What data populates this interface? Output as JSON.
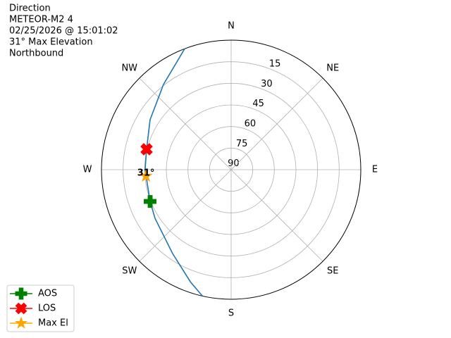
{
  "chart_data": {
    "type": "polar",
    "title_lines": [
      "Direction",
      "METEOR-M2 4",
      "02/25/2026 @ 15:01:02",
      "31° Max Elevation",
      "Northbound"
    ],
    "theta_ticks": [
      {
        "value": 0,
        "label": "N"
      },
      {
        "value": 45,
        "label": "NE"
      },
      {
        "value": 90,
        "label": "E"
      },
      {
        "value": 135,
        "label": "SE"
      },
      {
        "value": 180,
        "label": "S"
      },
      {
        "value": 225,
        "label": "SW"
      },
      {
        "value": 270,
        "label": "W"
      },
      {
        "value": 315,
        "label": "NW"
      }
    ],
    "rlim": [
      90,
      0
    ],
    "rticks": [
      15,
      30,
      45,
      60,
      75,
      90
    ],
    "grid": true,
    "track": {
      "color": "#1f77b4",
      "az": [
        339,
        321.6,
        301.7,
        283.6,
        270,
        248.6,
        237.4,
        214.9,
        200,
        192.8
      ],
      "el": [
        0,
        14.4,
        23.9,
        29.6,
        30.3,
        29.6,
        27.3,
        19.0,
        7.2,
        0
      ]
    },
    "markers": [
      {
        "name": "AOS",
        "shape": "plus",
        "color": "#008000",
        "az": 248.6,
        "el": 29.6
      },
      {
        "name": "LOS",
        "shape": "x",
        "color": "#ff0000",
        "az": 283.6,
        "el": 29.6
      },
      {
        "name": "Max El",
        "shape": "star",
        "color": "#ffa500",
        "az": 265.7,
        "el": 30.7
      }
    ],
    "annotation": "31°",
    "legend": "lower left"
  }
}
